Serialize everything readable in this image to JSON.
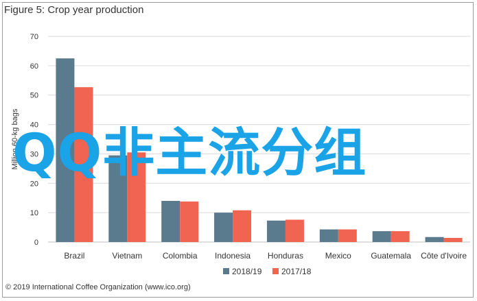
{
  "title": "Figure 5: Crop year production",
  "footer": "© 2019 International Coffee Organization (www.ico.org)",
  "overlay_text": "QQ非主流分组",
  "chart_data": {
    "type": "bar",
    "ylabel": "Million 60-kg bags",
    "ylim": [
      0,
      70
    ],
    "yticks": [
      0,
      10,
      20,
      30,
      40,
      50,
      60,
      70
    ],
    "grid": true,
    "legend_position": "bottom",
    "categories": [
      "Brazil",
      "Vietnam",
      "Colombia",
      "Indonesia",
      "Honduras",
      "Mexico",
      "Guatemala",
      "Côte d'Ivoire"
    ],
    "series": [
      {
        "name": "2018/19",
        "color": "#5a7a8e",
        "values": [
          62.5,
          29.5,
          14.0,
          10.0,
          7.3,
          4.3,
          3.7,
          1.7
        ]
      },
      {
        "name": "2017/18",
        "color": "#f26452",
        "values": [
          52.7,
          30.5,
          13.8,
          10.8,
          7.6,
          4.3,
          3.7,
          1.4
        ]
      }
    ]
  }
}
